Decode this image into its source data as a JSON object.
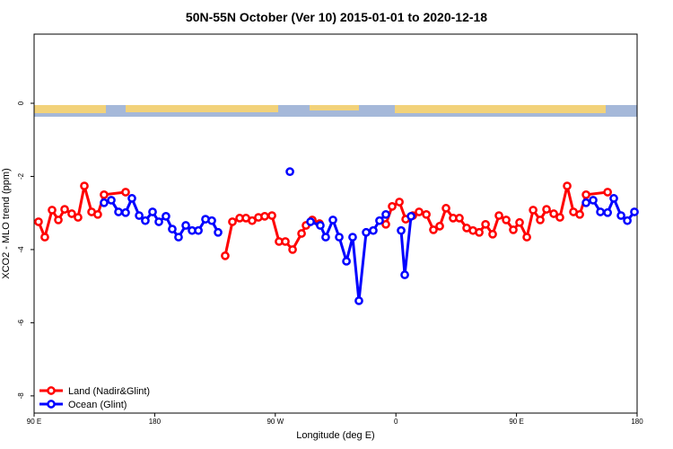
{
  "chart_data": {
    "type": "line",
    "title": "50N-55N October (Ver 10)   2015-01-01 to 2020-12-18",
    "x_label": "Longitude (deg E)",
    "y_label": "XCO2 - MLO trend (ppm)",
    "xlim": [
      90,
      540
    ],
    "xticks": [
      {
        "value": 90,
        "label": "90 E"
      },
      180,
      {
        "value": 270,
        "label": "90 W"
      },
      {
        "value": 360,
        "label": "0"
      },
      {
        "value": 450,
        "label": "90 E"
      },
      {
        "value": 540,
        "label": "180"
      }
    ],
    "ylim": [
      -8.47,
      1.89
    ],
    "yticks": [
      0,
      -2,
      -4,
      -6,
      -8
    ],
    "legend": "bottom-left",
    "series": [
      {
        "name": "Land (Nadir&Glint)",
        "color": "#ff0000",
        "x": [
          93.3,
          98.0,
          103.4,
          108.1,
          112.8,
          118.1,
          122.8,
          127.5,
          132.9,
          137.5,
          142.2,
          158.3,
          null,
          232.6,
          238.0,
          243.4,
          248.1,
          252.7,
          257.4,
          262.1,
          267.5,
          272.8,
          277.5,
          282.9,
          289.6,
          292.9,
          297.6,
          303.0,
          null,
          352.5,
          357.2,
          362.6,
          367.3,
          372.6,
          377.3,
          382.7,
          388.0,
          392.7,
          397.4,
          402.7,
          407.4,
          412.8,
          417.5,
          422.2,
          426.9,
          432.2,
          436.9,
          442.3,
          447.6,
          452.3,
          457.7,
          462.4,
          467.7,
          472.4,
          477.8,
          482.4,
          487.8,
          492.5,
          497.2,
          501.9,
          518.0
        ],
        "values": [
          -3.24,
          -3.66,
          -2.92,
          -3.19,
          -2.9,
          -3.02,
          -3.12,
          -2.26,
          -2.97,
          -3.04,
          -2.5,
          -2.43,
          null,
          -4.17,
          -3.24,
          -3.14,
          -3.14,
          -3.21,
          -3.12,
          -3.09,
          -3.07,
          -3.78,
          -3.78,
          -4.0,
          -3.56,
          -3.34,
          -3.19,
          -3.29,
          null,
          -3.31,
          -2.82,
          -2.7,
          -3.17,
          -3.07,
          -2.97,
          -3.04,
          -3.46,
          -3.36,
          -2.87,
          -3.14,
          -3.14,
          -3.41,
          -3.48,
          -3.53,
          -3.31,
          -3.58,
          -3.07,
          -3.19,
          -3.46,
          -3.26,
          -3.66,
          -2.92,
          -3.19,
          -2.9,
          -3.02,
          -3.12,
          -2.26,
          -2.97,
          -3.04,
          -2.5,
          -2.43
        ]
      },
      {
        "name": "Ocean (Glint)",
        "color": "#0000ff",
        "x": [
          142.2,
          147.6,
          153.0,
          158.3,
          163.0,
          168.4,
          173.0,
          178.4,
          183.1,
          188.4,
          193.1,
          197.8,
          203.2,
          207.9,
          212.6,
          217.9,
          222.6,
          227.3,
          null,
          280.9,
          null,
          296.3,
          303.6,
          307.6,
          313.0,
          317.7,
          323.1,
          327.7,
          332.4,
          337.8,
          343.1,
          347.8,
          352.5,
          null,
          363.9,
          366.6,
          371.3,
          null,
          501.9,
          507.2,
          512.6,
          518.0,
          522.6,
          528.0,
          532.7,
          538.0
        ],
        "values": [
          -2.72,
          -2.65,
          -2.97,
          -2.99,
          -2.6,
          -3.07,
          -3.21,
          -2.97,
          -3.24,
          -3.09,
          -3.44,
          -3.66,
          -3.34,
          -3.48,
          -3.48,
          -3.17,
          -3.21,
          -3.53,
          null,
          -1.87,
          null,
          -3.24,
          -3.34,
          -3.66,
          -3.19,
          -3.66,
          -4.32,
          -3.66,
          -5.4,
          -3.53,
          -3.48,
          -3.21,
          -3.04,
          null,
          -3.48,
          -4.69,
          -3.09,
          null,
          -2.72,
          -2.65,
          -2.97,
          -2.99,
          -2.6,
          -3.07,
          -3.21,
          -2.97
        ]
      }
    ]
  }
}
